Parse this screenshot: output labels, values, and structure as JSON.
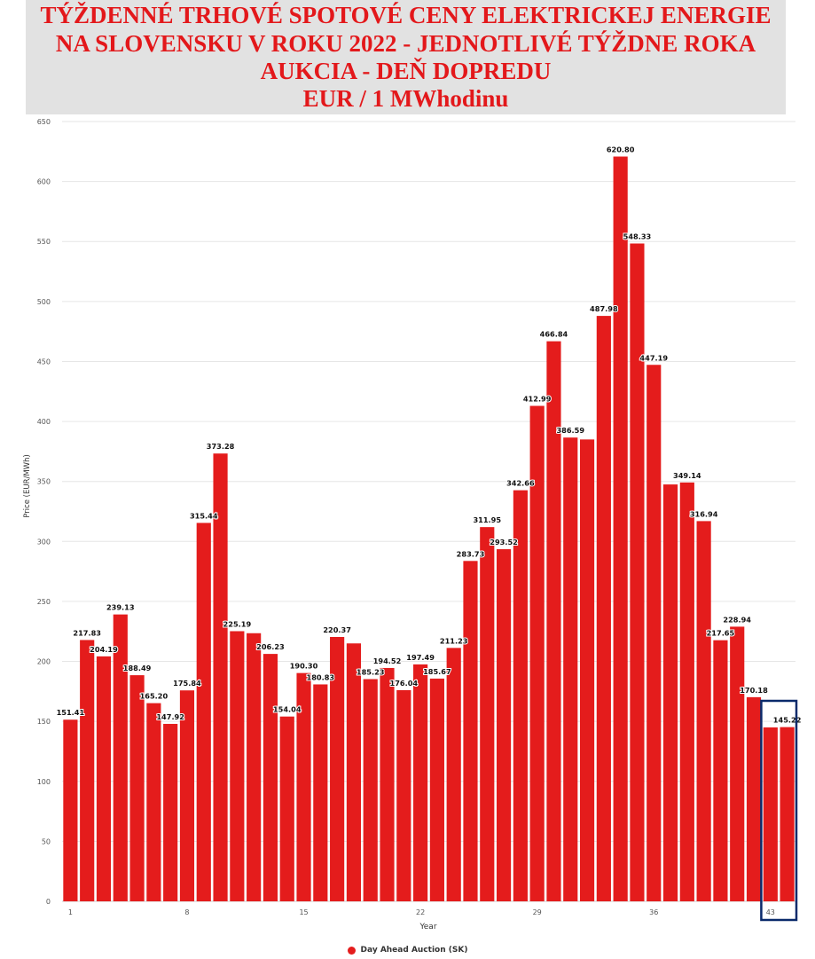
{
  "colors": {
    "bar": "#e41c1c",
    "title": "#e3181b",
    "title_bg": "#e2e2e2",
    "grid": "#e6e6e6",
    "highlight_box": "#0a2a6b"
  },
  "chart_data": {
    "type": "bar",
    "title_lines": [
      "TÝŽDENNÉ TRHOVÉ SPOTOVÉ CENY ELEKTRICKEJ ENERGIE",
      "NA SLOVENSKU V ROKU 2022 - JEDNOTLIVÉ TÝŽDNE ROKA",
      "AUKCIA - DEŇ DOPREDU",
      "EUR / 1 MWhodinu"
    ],
    "xlabel": "Year",
    "ylabel": "Price (EUR/MWh)",
    "ylim": [
      0,
      650
    ],
    "yticks": [
      0,
      50,
      100,
      150,
      200,
      250,
      300,
      350,
      400,
      450,
      500,
      550,
      600,
      650
    ],
    "xticks": [
      1,
      8,
      15,
      22,
      29,
      36,
      43
    ],
    "grid": true,
    "legend": {
      "position": "bottom-center",
      "label": "Day Ahead Auction (SK)"
    },
    "series": [
      {
        "name": "Day Ahead Auction (SK)",
        "weeks": [
          1,
          2,
          3,
          4,
          5,
          6,
          7,
          8,
          9,
          10,
          11,
          12,
          13,
          14,
          15,
          16,
          17,
          18,
          19,
          20,
          21,
          22,
          23,
          24,
          25,
          26,
          27,
          28,
          29,
          30,
          31,
          32,
          33,
          34,
          35,
          36,
          37,
          38,
          39,
          40,
          41,
          42,
          43,
          44
        ],
        "values": [
          151.41,
          217.83,
          204.19,
          239.13,
          188.49,
          165.2,
          147.92,
          175.84,
          315.44,
          373.28,
          225.19,
          223.5,
          206.23,
          154.04,
          190.3,
          180.83,
          220.37,
          215.0,
          185.23,
          194.52,
          176.04,
          197.49,
          185.67,
          211.23,
          283.73,
          311.95,
          293.52,
          342.66,
          412.99,
          466.84,
          386.59,
          385.0,
          487.98,
          620.8,
          548.33,
          447.19,
          347.5,
          349.14,
          316.94,
          217.65,
          228.94,
          170.18,
          145.0,
          145.22
        ],
        "labels": [
          "151.41",
          "217.83",
          "204.19",
          "239.13",
          "188.49",
          "165.20",
          "147.92",
          "175.84",
          "315.44",
          "373.28",
          "225.19",
          "",
          "206.23",
          "154.04",
          "190.30",
          "180.83",
          "220.37",
          "",
          "185.23",
          "194.52",
          "176.04",
          "197.49",
          "185.67",
          "211.23",
          "283.73",
          "311.95",
          "293.52",
          "342.66",
          "412.99",
          "466.84",
          "386.59",
          "",
          "487.98",
          "620.80",
          "548.33",
          "447.19",
          "",
          "349.14",
          "316.94",
          "217.65",
          "228.94",
          "170.18",
          "",
          "145.22"
        ]
      }
    ],
    "highlight_weeks": [
      43,
      44
    ]
  }
}
